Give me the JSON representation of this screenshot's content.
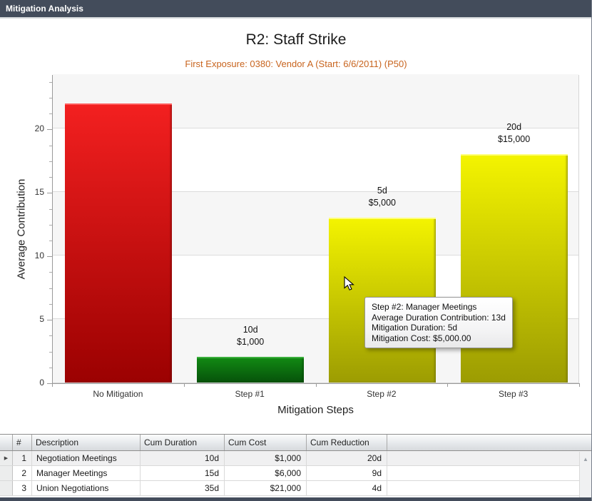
{
  "window": {
    "title": "Mitigation Analysis"
  },
  "colors": {
    "titlebar_bg": "#434C5B",
    "subtitle_text": "#C8641E",
    "plot_band": "#F6F6F6",
    "gridline": "#DCDCDC",
    "bar_red": "#EE1212",
    "bar_green": "#0E7D10",
    "bar_yellow": "#EFEF00",
    "selected_row_bg": "#F0F0F1"
  },
  "chart_data": {
    "type": "bar",
    "title": "R2: Staff Strike",
    "subtitle": "First Exposure: 0380: Vendor A (Start: 6/6/2011) (P50)",
    "xlabel": "Mitigation Steps",
    "ylabel": "Average Contribution",
    "categories": [
      "No Mitigation",
      "Step #1",
      "Step #2",
      "Step #3"
    ],
    "values": [
      22,
      2,
      13,
      18
    ],
    "bar_colors": [
      "#EE1212",
      "#0E7D10",
      "#EFEF00",
      "#EFEF00"
    ],
    "bar_annotations": [
      "",
      "10d\n$1,000",
      "5d\n$5,000",
      "20d\n$15,000"
    ],
    "ylim": [
      0,
      24.3
    ],
    "yticks": [
      0,
      5,
      10,
      15,
      20
    ],
    "grid": "horizontal-bands",
    "legend": "none"
  },
  "tooltip": {
    "lines": [
      "Step #2: Manager Meetings",
      "Average Duration Contribution: 13d",
      "Mitigation Duration: 5d",
      "Mitigation Cost: $5,000.00"
    ]
  },
  "table": {
    "headers": [
      "#",
      "Description",
      "Cum Duration",
      "Cum Cost",
      "Cum Reduction"
    ],
    "rows": [
      [
        "1",
        "Negotiation Meetings",
        "10d",
        "$1,000",
        "20d"
      ],
      [
        "2",
        "Manager Meetings",
        "15d",
        "$6,000",
        "9d"
      ],
      [
        "3",
        "Union Negotiations",
        "35d",
        "$21,000",
        "4d"
      ]
    ],
    "selected_row_index": 0
  },
  "icons": {
    "selected_row_marker": "▶",
    "scroll_up": "▲"
  }
}
